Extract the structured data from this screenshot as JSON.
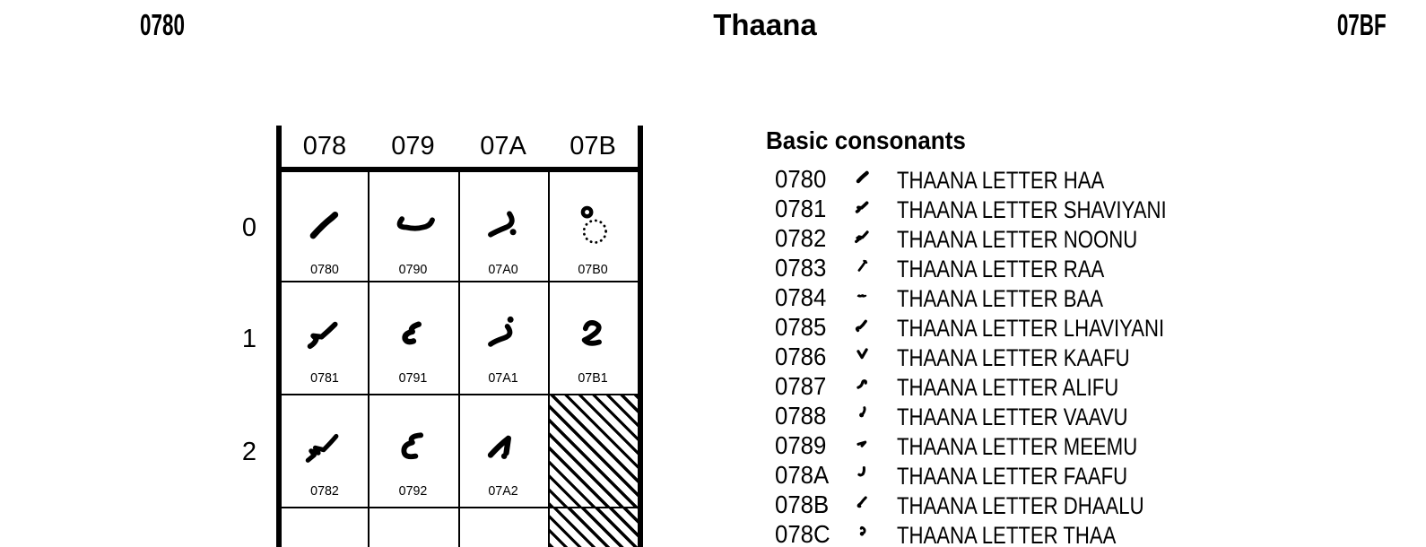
{
  "page_header": {
    "left_code": "0780",
    "title": "Thaana",
    "right_code": "07BF"
  },
  "colors": {
    "ink": "#000000",
    "paper": "#ffffff"
  },
  "chart": {
    "column_headers": [
      "078",
      "079",
      "07A",
      "07B"
    ],
    "row_labels": [
      "0",
      "1",
      "2"
    ],
    "cells": [
      {
        "row": 0,
        "col": 0,
        "code": "0780",
        "glyph": "haa"
      },
      {
        "row": 0,
        "col": 1,
        "code": "0790",
        "glyph": "seenu"
      },
      {
        "row": 0,
        "col": 2,
        "code": "07A0",
        "glyph": "to"
      },
      {
        "row": 0,
        "col": 3,
        "code": "07B0",
        "glyph": "sukun"
      },
      {
        "row": 1,
        "col": 0,
        "code": "0781",
        "glyph": "shaviyani"
      },
      {
        "row": 1,
        "col": 1,
        "code": "0791",
        "glyph": "daviyani"
      },
      {
        "row": 1,
        "col": 2,
        "code": "07A1",
        "glyph": "zo"
      },
      {
        "row": 1,
        "col": 3,
        "code": "07B1",
        "glyph": "naa"
      },
      {
        "row": 2,
        "col": 0,
        "code": "0782",
        "glyph": "noonu"
      },
      {
        "row": 2,
        "col": 1,
        "code": "0792",
        "glyph": "zaviyani"
      },
      {
        "row": 2,
        "col": 2,
        "code": "07A2",
        "glyph": "ainu"
      }
    ],
    "reserved_cells": [
      {
        "row": 2,
        "col": 3
      },
      {
        "row": 3,
        "col": 3
      }
    ]
  },
  "list": {
    "heading": "Basic consonants",
    "entries": [
      {
        "code": "0780",
        "glyph": "haa",
        "name": "THAANA LETTER HAA"
      },
      {
        "code": "0781",
        "glyph": "shaviyani",
        "name": "THAANA LETTER SHAVIYANI"
      },
      {
        "code": "0782",
        "glyph": "noonu",
        "name": "THAANA LETTER NOONU"
      },
      {
        "code": "0783",
        "glyph": "raa",
        "name": "THAANA LETTER RAA"
      },
      {
        "code": "0784",
        "glyph": "baa",
        "name": "THAANA LETTER BAA"
      },
      {
        "code": "0785",
        "glyph": "lhaviyani",
        "name": "THAANA LETTER LHAVIYANI"
      },
      {
        "code": "0786",
        "glyph": "kaafu",
        "name": "THAANA LETTER KAAFU"
      },
      {
        "code": "0787",
        "glyph": "alifu",
        "name": "THAANA LETTER ALIFU"
      },
      {
        "code": "0788",
        "glyph": "vaavu",
        "name": "THAANA LETTER VAAVU"
      },
      {
        "code": "0789",
        "glyph": "meemu",
        "name": "THAANA LETTER MEEMU"
      },
      {
        "code": "078A",
        "glyph": "faafu",
        "name": "THAANA LETTER FAAFU"
      },
      {
        "code": "078B",
        "glyph": "dhaalu",
        "name": "THAANA LETTER DHAALU"
      },
      {
        "code": "078C",
        "glyph": "thaa",
        "name": "THAANA LETTER THAA"
      }
    ]
  }
}
